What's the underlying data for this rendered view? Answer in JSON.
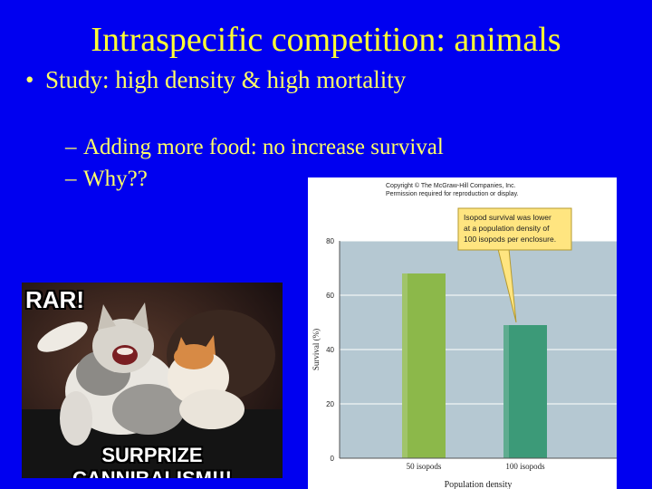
{
  "slide": {
    "title": "Intraspecific competition: animals",
    "bullet": "Study: high density & high mortality",
    "sub_bullets": [
      "Adding more food: no increase survival",
      "Why??"
    ]
  },
  "meme": {
    "top_caption": "RAR!",
    "bottom_caption": "SURPRIZE CANNIBALISM!!!"
  },
  "colors": {
    "background": "#0000f0",
    "title": "#ffff33",
    "text": "#ffff66",
    "plot_bg": "#b5c8d2",
    "bar_50": "#8cb84a",
    "bar_100": "#3c9a78",
    "callout_bg": "#ffe580"
  },
  "chart_data": {
    "type": "bar",
    "copyright": [
      "Copyright © The McGraw-Hill Companies, Inc.",
      "Permission required for reproduction or display."
    ],
    "categories": [
      "50 isopods",
      "100 isopods"
    ],
    "values": [
      68,
      49
    ],
    "xlabel": "Population density",
    "ylabel": "Survival (%)",
    "ylim": [
      0,
      80
    ],
    "yticks": [
      0,
      20,
      40,
      60,
      80
    ],
    "grid": true,
    "annotation": [
      "Isopod survival was lower",
      "at a population density of",
      "100 isopods per enclosure."
    ]
  }
}
